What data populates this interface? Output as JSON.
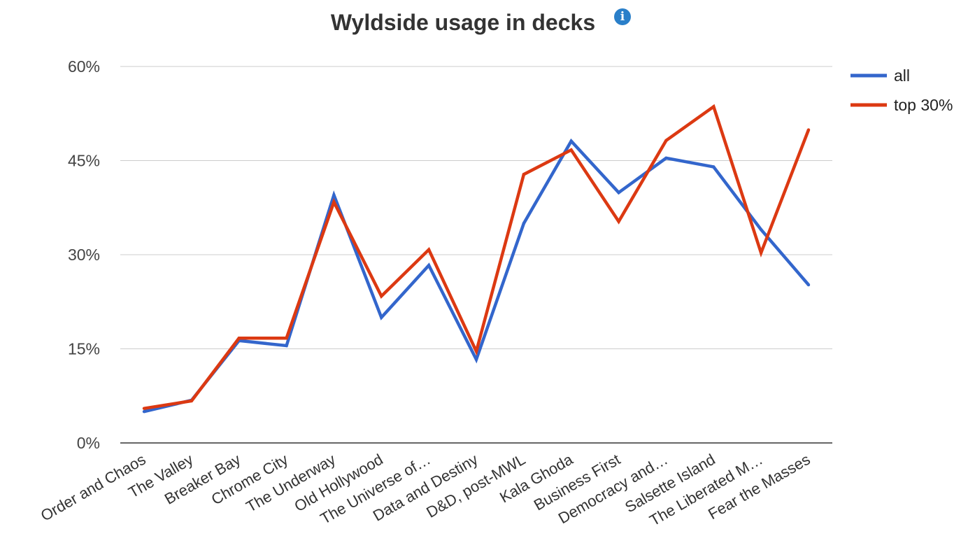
{
  "chart_data": {
    "type": "line",
    "title": "Wyldside usage in decks",
    "info_icon": "info-icon",
    "xlabel": "",
    "ylabel": "",
    "ylim": [
      0,
      60
    ],
    "yticks": [
      0,
      15,
      30,
      45,
      60
    ],
    "ytick_labels": [
      "0%",
      "15%",
      "30%",
      "45%",
      "60%"
    ],
    "grid": true,
    "legend_position": "right",
    "categories": [
      "Order and Chaos",
      "The Valley",
      "Breaker Bay",
      "Chrome City",
      "The Underway",
      "Old Hollywood",
      "The Universe of…",
      "Data and Destiny",
      "D&D, post-MWL",
      "Kala Ghoda",
      "Business First",
      "Democracy and…",
      "Salsette Island",
      "The Liberated M…",
      "Fear the Masses"
    ],
    "series": [
      {
        "name": "all",
        "color": "#3366cc",
        "values": [
          5.0,
          6.8,
          16.3,
          15.5,
          39.5,
          20.0,
          28.3,
          13.3,
          35.0,
          48.1,
          39.9,
          45.4,
          44.0,
          34.0,
          25.2
        ]
      },
      {
        "name": "top 30%",
        "color": "#dc3912",
        "values": [
          5.5,
          6.7,
          16.7,
          16.7,
          38.4,
          23.4,
          30.8,
          14.6,
          42.8,
          46.7,
          35.3,
          48.2,
          53.6,
          30.3,
          49.9
        ]
      }
    ]
  }
}
